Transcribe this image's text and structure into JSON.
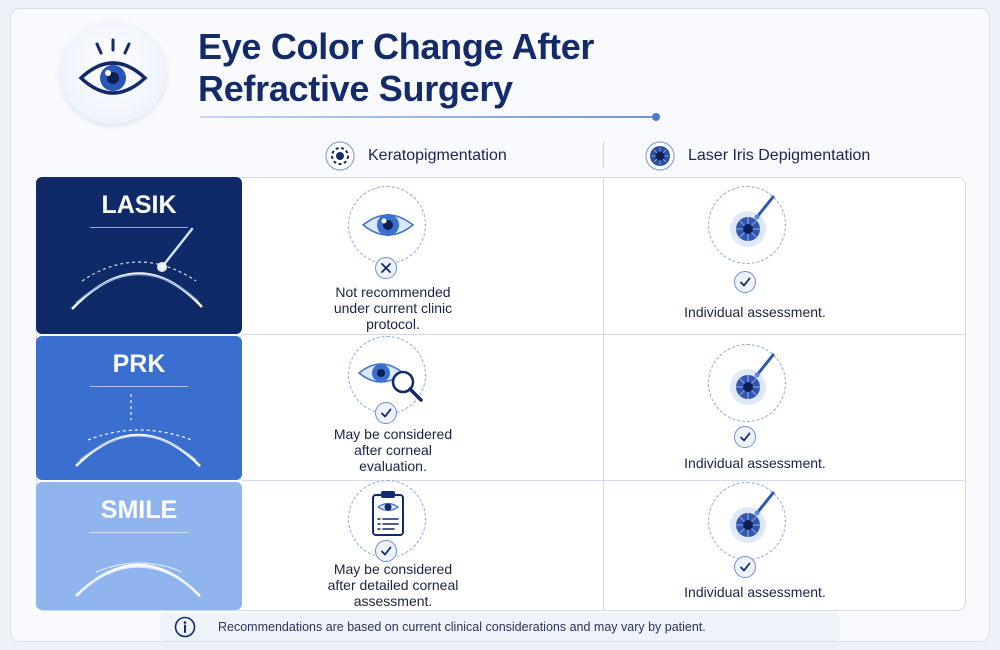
{
  "header": {
    "title_line1": "Eye Color Change After",
    "title_line2": "Refractive Surgery"
  },
  "columns": [
    {
      "label": "Keratopigmentation",
      "icon": "keratopigmentation-icon"
    },
    {
      "label": "Laser Iris Depigmentation",
      "icon": "iris-laser-icon"
    }
  ],
  "rows": [
    {
      "label": "LASIK",
      "color": "#0f2a66",
      "keratopigmentation": {
        "status": "not-recommended",
        "icon": "eye-icon",
        "text": [
          "Not recommended",
          "under current clinic",
          "protocol."
        ]
      },
      "laser": {
        "status": "check",
        "icon": "iris-laser-icon",
        "text": "Individual assessment."
      }
    },
    {
      "label": "PRK",
      "color": "#3a6fd0",
      "keratopigmentation": {
        "status": "check",
        "icon": "eye-magnifier-icon",
        "text": [
          "May be considered",
          "after corneal",
          "evaluation."
        ]
      },
      "laser": {
        "status": "check",
        "icon": "iris-laser-icon",
        "text": "Individual assessment."
      }
    },
    {
      "label": "SMILE",
      "color": "#8fb4ee",
      "keratopigmentation": {
        "status": "check",
        "icon": "clipboard-eye-icon",
        "text": [
          "May be considered",
          "after detailed corneal",
          "assessment."
        ]
      },
      "laser": {
        "status": "check",
        "icon": "iris-laser-icon",
        "text": "Individual assessment."
      }
    }
  ],
  "footer": {
    "icon": "info-icon",
    "text": "Recommendations are based on current clinical considerations and may vary by patient."
  }
}
